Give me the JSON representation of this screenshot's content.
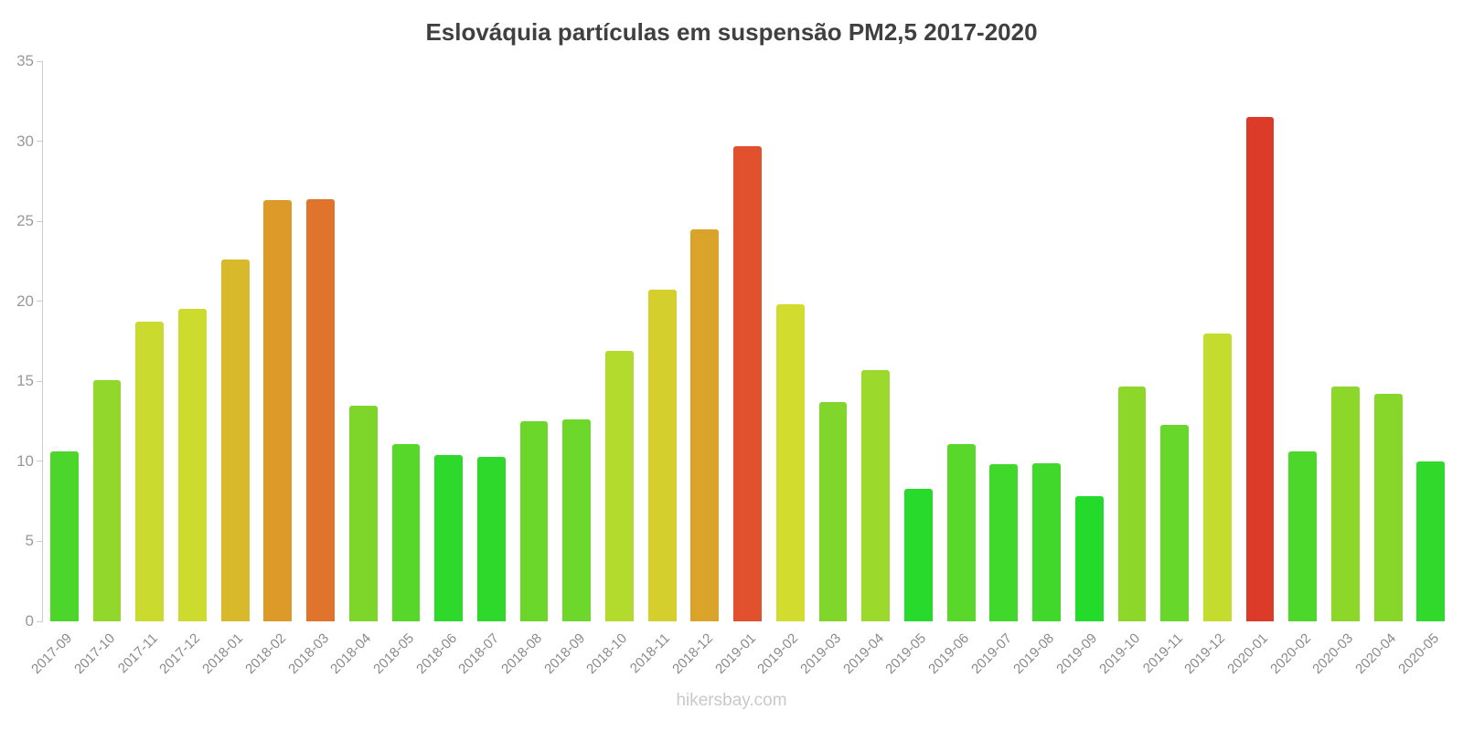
{
  "chart_data": {
    "type": "bar",
    "title": "Eslováquia partículas em suspensão PM2,5 2017-2020",
    "xlabel": "",
    "ylabel": "",
    "ylim": [
      0,
      35
    ],
    "yticks": [
      0,
      5,
      10,
      15,
      20,
      25,
      30,
      35
    ],
    "grid": false,
    "legend": "none",
    "bars": [
      {
        "label": "2017-09",
        "value": 10.6,
        "color": "#4cd62b"
      },
      {
        "label": "2017-10",
        "value": 15.1,
        "color": "#92d72b"
      },
      {
        "label": "2017-11",
        "value": 18.7,
        "color": "#cada2e"
      },
      {
        "label": "2017-12",
        "value": 19.5,
        "color": "#cdda2e"
      },
      {
        "label": "2018-01",
        "value": 22.6,
        "color": "#d8b92c"
      },
      {
        "label": "2018-02",
        "value": 26.3,
        "color": "#dc9a28"
      },
      {
        "label": "2018-03",
        "value": 26.4,
        "color": "#e0742c"
      },
      {
        "label": "2018-04",
        "value": 13.5,
        "color": "#7fd62b"
      },
      {
        "label": "2018-05",
        "value": 11.1,
        "color": "#58d72b"
      },
      {
        "label": "2018-06",
        "value": 10.4,
        "color": "#2ed92b"
      },
      {
        "label": "2018-07",
        "value": 10.3,
        "color": "#2ed92b"
      },
      {
        "label": "2018-08",
        "value": 12.5,
        "color": "#6cd72b"
      },
      {
        "label": "2018-09",
        "value": 12.6,
        "color": "#6ed72b"
      },
      {
        "label": "2018-10",
        "value": 16.9,
        "color": "#b3db2d"
      },
      {
        "label": "2018-11",
        "value": 20.7,
        "color": "#d4cf2d"
      },
      {
        "label": "2018-12",
        "value": 24.5,
        "color": "#daa42a"
      },
      {
        "label": "2019-01",
        "value": 29.7,
        "color": "#e2512e"
      },
      {
        "label": "2019-02",
        "value": 19.8,
        "color": "#d2dc2e"
      },
      {
        "label": "2019-03",
        "value": 13.7,
        "color": "#80d62b"
      },
      {
        "label": "2019-04",
        "value": 15.7,
        "color": "#9bd92c"
      },
      {
        "label": "2019-05",
        "value": 8.3,
        "color": "#27da2b"
      },
      {
        "label": "2019-06",
        "value": 11.1,
        "color": "#5ad72b"
      },
      {
        "label": "2019-07",
        "value": 9.8,
        "color": "#3fd82b"
      },
      {
        "label": "2019-08",
        "value": 9.9,
        "color": "#41d82b"
      },
      {
        "label": "2019-09",
        "value": 7.8,
        "color": "#24da2b"
      },
      {
        "label": "2019-10",
        "value": 14.7,
        "color": "#8dd72b"
      },
      {
        "label": "2019-11",
        "value": 12.3,
        "color": "#68d72b"
      },
      {
        "label": "2019-12",
        "value": 18.0,
        "color": "#c4dc2d"
      },
      {
        "label": "2020-01",
        "value": 31.5,
        "color": "#dc3b2a"
      },
      {
        "label": "2020-02",
        "value": 10.6,
        "color": "#4ed72b"
      },
      {
        "label": "2020-03",
        "value": 14.7,
        "color": "#8dd72b"
      },
      {
        "label": "2020-04",
        "value": 14.2,
        "color": "#87d72b"
      },
      {
        "label": "2020-05",
        "value": 10.0,
        "color": "#30d92b"
      }
    ]
  },
  "footer": {
    "text": "hikersbay.com"
  }
}
